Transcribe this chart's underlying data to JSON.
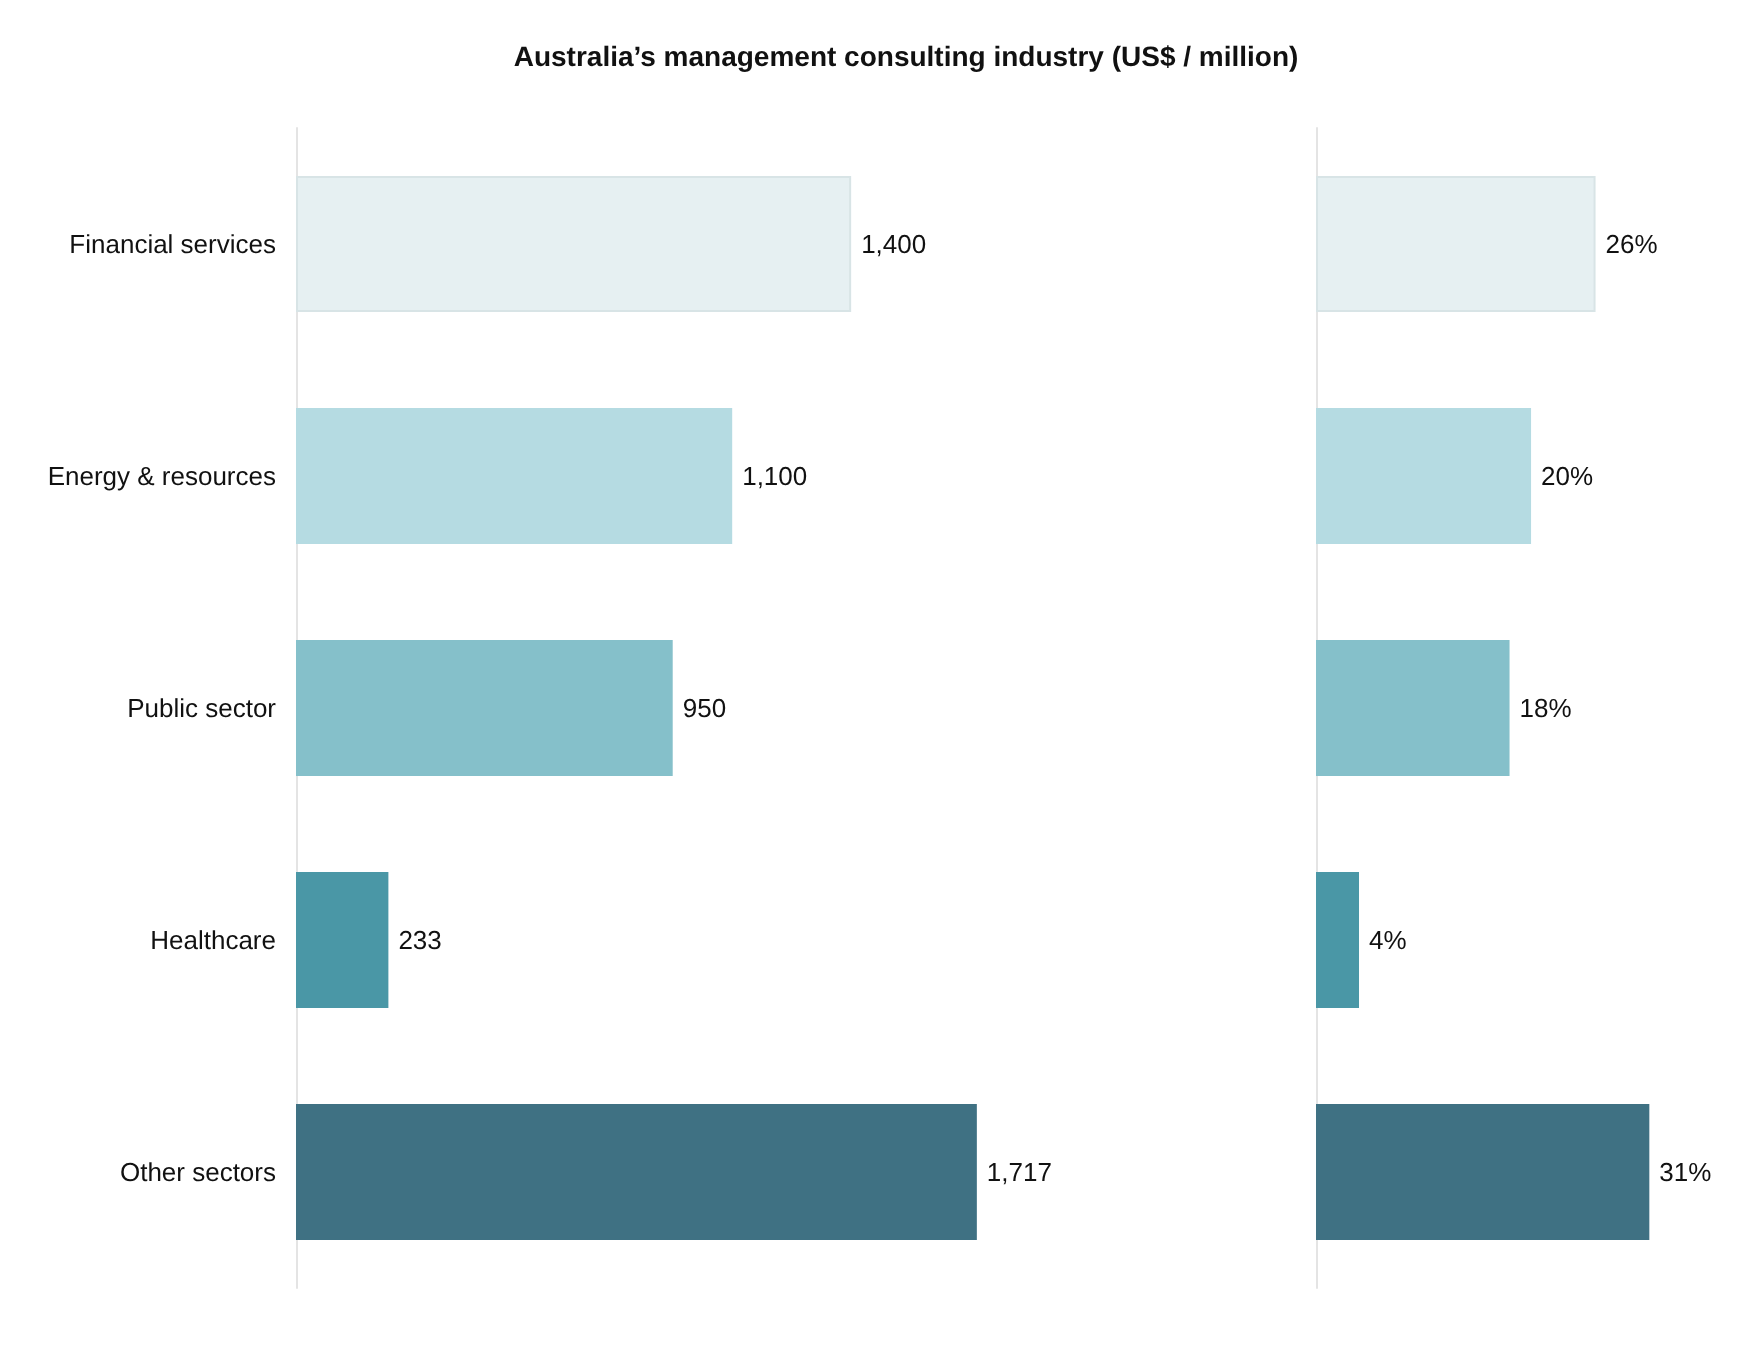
{
  "chart_data": [
    {
      "type": "bar",
      "orientation": "horizontal",
      "title": "Australia’s management consulting industry (US$ / million)",
      "categories": [
        "Financial services",
        "Energy & resources",
        "Public sector",
        "Healthcare",
        "Other sectors"
      ],
      "values": [
        1400,
        1100,
        950,
        233,
        1717
      ],
      "colors": [
        "#e6f0f2",
        "#b5dbe2",
        "#85c0ca",
        "#4a97a6",
        "#3f7183"
      ],
      "value_labels": [
        "1,400",
        "1,100",
        "950",
        "233",
        "1,717"
      ]
    },
    {
      "type": "bar",
      "orientation": "horizontal",
      "categories": [
        null,
        null,
        null,
        null,
        null
      ],
      "values": [
        26,
        20,
        18,
        4,
        31
      ],
      "colors": [
        "#e6f0f2",
        "#b5dbe2",
        "#85c0ca",
        "#4a97a6",
        "#3f7183"
      ],
      "value_labels": [
        "26%",
        "20%",
        "18%",
        "4%",
        "31%"
      ]
    }
  ]
}
